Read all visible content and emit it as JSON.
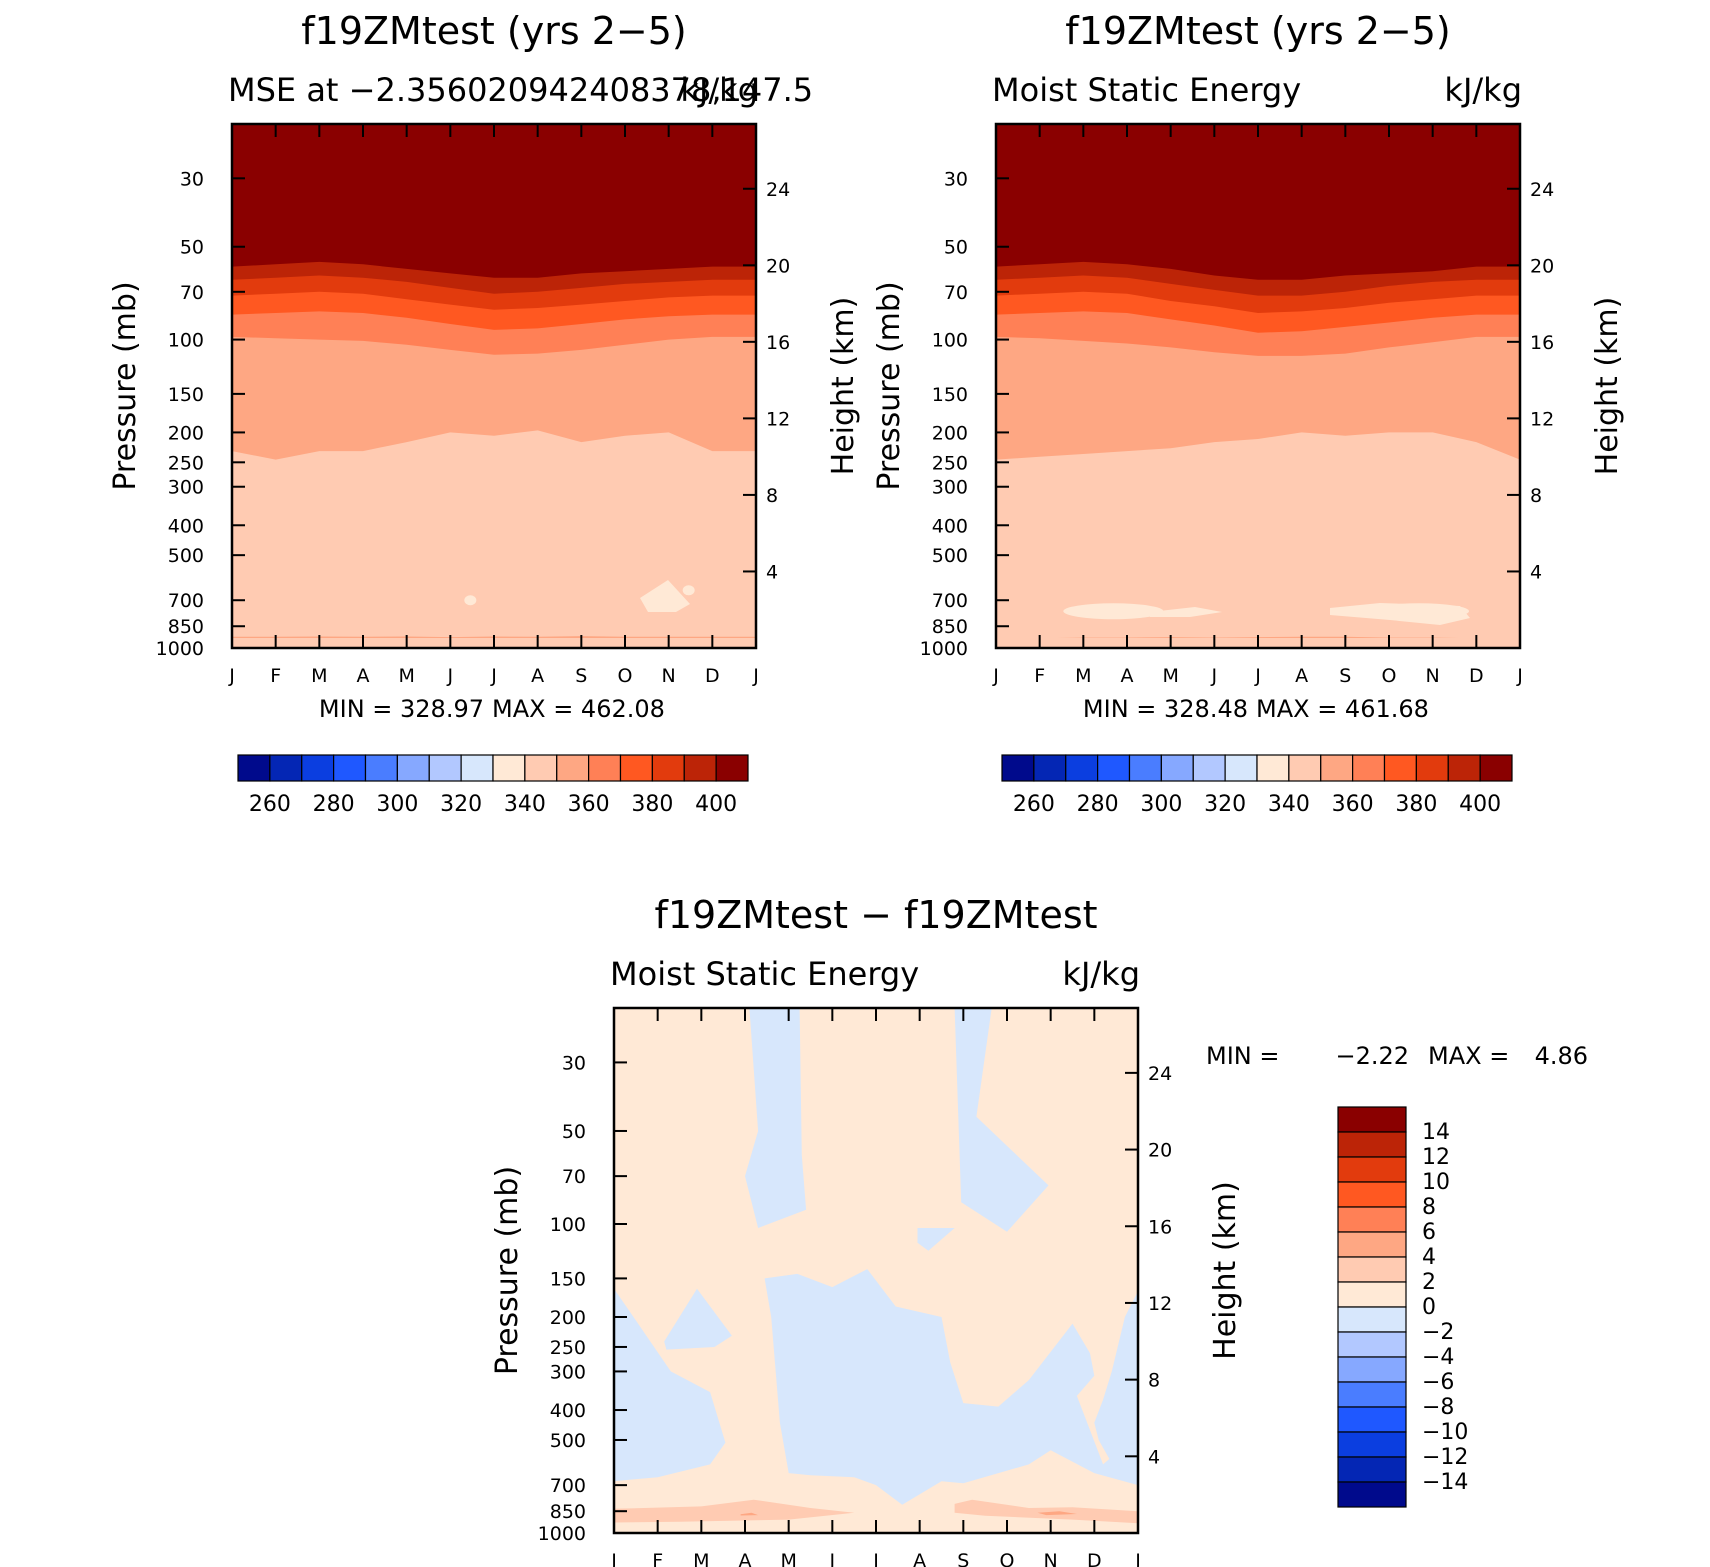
{
  "palette": {
    "mse": [
      "#000a8c",
      "#0426b4",
      "#0b3ee0",
      "#1f58ff",
      "#4a7dff",
      "#86a8ff",
      "#b2c8ff",
      "#d7e7fc",
      "#ffe9d6",
      "#ffcbb2",
      "#fea783",
      "#ff8056",
      "#ff5821",
      "#e23b0d",
      "#bc2407",
      "#8a0000"
    ],
    "diff": [
      "#000a8c",
      "#0426b4",
      "#0b3ee0",
      "#1f58ff",
      "#4a7dff",
      "#86a8ff",
      "#b2c8ff",
      "#d7e7fc",
      "#ffe9d6",
      "#ffcbb2",
      "#fea783",
      "#ff8056",
      "#ff5821",
      "#e23b0d",
      "#bc2407",
      "#8a0000"
    ]
  },
  "chart_data": [
    {
      "type": "heatmap",
      "title": "f19ZMtest (yrs 2−5)",
      "subtitle_left": "MSE at −2.356020942408378,147.5",
      "subtitle_right": "kJ/kg",
      "ylabel": "Pressure (mb)",
      "ylabel_right": "Height (km)",
      "x_tick_labels": [
        "J",
        "F",
        "M",
        "A",
        "M",
        "J",
        "J",
        "A",
        "S",
        "O",
        "N",
        "D",
        "J"
      ],
      "y_tick_labels": [
        "30",
        "50",
        "70",
        "100",
        "150",
        "200",
        "250",
        "300",
        "400",
        "500",
        "700",
        "850",
        "1000"
      ],
      "y_ticks": [
        30,
        50,
        70,
        100,
        150,
        200,
        250,
        300,
        400,
        500,
        700,
        850,
        1000
      ],
      "y_right_ticks": [
        "4",
        "8",
        "12",
        "16",
        "20",
        "24"
      ],
      "ylim": [
        1000,
        20
      ],
      "y_scale": "log",
      "min_text": "MIN = 328.97",
      "max_text": "MAX = 462.08",
      "colorbar_labels": [
        "260",
        "280",
        "300",
        "320",
        "340",
        "360",
        "380",
        "400"
      ],
      "contour_levels": [
        250,
        260,
        270,
        280,
        290,
        300,
        310,
        320,
        330,
        340,
        350,
        360,
        370,
        380,
        390,
        400
      ],
      "months": [
        "J",
        "F",
        "M",
        "A",
        "M",
        "J",
        "J",
        "A",
        "S",
        "O",
        "N",
        "D",
        "J"
      ],
      "level_boundaries": [
        {
          "level": 400,
          "pressure_mb": [
            52,
            51,
            50,
            51,
            53,
            55,
            57,
            56,
            55,
            54,
            53,
            52,
            52
          ]
        },
        {
          "level": 390,
          "pressure_mb": [
            58,
            57,
            56,
            57,
            59,
            61,
            63,
            63,
            61,
            60,
            59,
            58,
            58
          ]
        },
        {
          "level": 380,
          "pressure_mb": [
            64,
            63,
            62,
            63,
            65,
            68,
            71,
            70,
            68,
            66,
            65,
            64,
            64
          ]
        },
        {
          "level": 370,
          "pressure_mb": [
            72,
            71,
            70,
            71,
            74,
            77,
            80,
            79,
            77,
            75,
            73,
            72,
            72
          ]
        },
        {
          "level": 360,
          "pressure_mb": [
            83,
            82,
            81,
            82,
            85,
            89,
            93,
            92,
            89,
            86,
            84,
            83,
            83
          ]
        },
        {
          "level": 350,
          "pressure_mb": [
            98,
            99,
            100,
            101,
            104,
            108,
            112,
            111,
            108,
            104,
            100,
            98,
            98
          ]
        },
        {
          "level": 340,
          "pressure_mb": [
            230,
            245,
            230,
            230,
            215,
            200,
            205,
            197,
            215,
            205,
            200,
            230,
            230
          ]
        },
        {
          "level": 330,
          "pressure_mb": [
            920,
            920,
            918,
            920,
            918,
            922,
            918,
            920,
            915,
            920,
            920,
            920,
            920
          ]
        }
      ],
      "below_330_patches": [
        {
          "month": "J",
          "pressure_mb": 700
        },
        {
          "month": "N",
          "pressure_mb": 650
        }
      ]
    },
    {
      "type": "heatmap",
      "title": "f19ZMtest (yrs 2−5)",
      "subtitle_left": "Moist Static Energy",
      "subtitle_right": "kJ/kg",
      "ylabel": "Pressure (mb)",
      "ylabel_right": "Height (km)",
      "x_tick_labels": [
        "J",
        "F",
        "M",
        "A",
        "M",
        "J",
        "J",
        "A",
        "S",
        "O",
        "N",
        "D",
        "J"
      ],
      "y_tick_labels": [
        "30",
        "50",
        "70",
        "100",
        "150",
        "200",
        "250",
        "300",
        "400",
        "500",
        "700",
        "850",
        "1000"
      ],
      "y_ticks": [
        30,
        50,
        70,
        100,
        150,
        200,
        250,
        300,
        400,
        500,
        700,
        850,
        1000
      ],
      "y_right_ticks": [
        "4",
        "8",
        "12",
        "16",
        "20",
        "24"
      ],
      "ylim": [
        1000,
        20
      ],
      "y_scale": "log",
      "min_text": "MIN = 328.48",
      "max_text": "MAX = 461.68",
      "colorbar_labels": [
        "260",
        "280",
        "300",
        "320",
        "340",
        "360",
        "380",
        "400"
      ],
      "contour_levels": [
        250,
        260,
        270,
        280,
        290,
        300,
        310,
        320,
        330,
        340,
        350,
        360,
        370,
        380,
        390,
        400
      ],
      "months": [
        "J",
        "F",
        "M",
        "A",
        "M",
        "J",
        "J",
        "A",
        "S",
        "O",
        "N",
        "D",
        "J"
      ],
      "level_boundaries": [
        {
          "level": 400,
          "pressure_mb": [
            52,
            51,
            50,
            51,
            53,
            55,
            57,
            57,
            56,
            55,
            54,
            52,
            52
          ]
        },
        {
          "level": 390,
          "pressure_mb": [
            58,
            57,
            56,
            57,
            59,
            62,
            64,
            64,
            62,
            61,
            60,
            58,
            58
          ]
        },
        {
          "level": 380,
          "pressure_mb": [
            64,
            63,
            62,
            63,
            66,
            69,
            72,
            72,
            70,
            67,
            65,
            64,
            64
          ]
        },
        {
          "level": 370,
          "pressure_mb": [
            72,
            71,
            70,
            71,
            75,
            78,
            82,
            81,
            79,
            76,
            74,
            72,
            72
          ]
        },
        {
          "level": 360,
          "pressure_mb": [
            83,
            82,
            81,
            82,
            86,
            90,
            95,
            94,
            91,
            88,
            85,
            83,
            83
          ]
        },
        {
          "level": 350,
          "pressure_mb": [
            98,
            99,
            101,
            103,
            106,
            110,
            113,
            113,
            111,
            106,
            102,
            98,
            98
          ]
        },
        {
          "level": 340,
          "pressure_mb": [
            245,
            240,
            235,
            230,
            225,
            215,
            210,
            200,
            205,
            200,
            200,
            215,
            245
          ]
        },
        {
          "level": 330,
          "pressure_mb": [
            930,
            930,
            925,
            925,
            922,
            925,
            922,
            920,
            920,
            925,
            925,
            930,
            930
          ]
        }
      ],
      "below_330_patches": [
        {
          "month": "M",
          "pressure_mb": 760
        },
        {
          "month": "O",
          "pressure_mb": 760
        }
      ]
    },
    {
      "type": "heatmap",
      "title": "f19ZMtest − f19ZMtest",
      "subtitle_left": "Moist Static Energy",
      "subtitle_right": "kJ/kg",
      "ylabel": "Pressure (mb)",
      "ylabel_right": "Height (km)",
      "x_tick_labels": [
        "J",
        "F",
        "M",
        "A",
        "M",
        "J",
        "J",
        "A",
        "S",
        "O",
        "N",
        "D",
        "J"
      ],
      "y_tick_labels": [
        "30",
        "50",
        "70",
        "100",
        "150",
        "200",
        "250",
        "300",
        "400",
        "500",
        "700",
        "850",
        "1000"
      ],
      "y_ticks": [
        30,
        50,
        70,
        100,
        150,
        200,
        250,
        300,
        400,
        500,
        700,
        850,
        1000
      ],
      "y_right_ticks": [
        "4",
        "8",
        "12",
        "16",
        "20",
        "24"
      ],
      "ylim": [
        1000,
        20
      ],
      "y_scale": "log",
      "min_label": "MIN =",
      "min_value": "−2.22",
      "max_label": "MAX =",
      "max_value": "4.86",
      "colorbar_labels": [
        "14",
        "12",
        "10",
        "8",
        "6",
        "4",
        "2",
        "0",
        "−2",
        "−4",
        "−6",
        "−8",
        "−10",
        "−12",
        "−14"
      ],
      "contour_levels": [
        -14,
        -12,
        -10,
        -8,
        -6,
        -4,
        -2,
        0,
        2,
        4,
        6,
        8,
        10,
        12,
        14
      ],
      "background_range": [
        0,
        2
      ],
      "negative_regions": [
        {
          "name": "upper-A",
          "range": [
            -2,
            0
          ],
          "months": [
            "A",
            "M"
          ],
          "pressure_mb": [
            20,
            100
          ]
        },
        {
          "name": "upper-S",
          "range": [
            -2,
            0
          ],
          "months": [
            "S",
            "O"
          ],
          "pressure_mb": [
            20,
            110
          ]
        },
        {
          "name": "mid-J",
          "range": [
            -2,
            0
          ],
          "months": [
            "J",
            "M"
          ],
          "pressure_mb": [
            160,
            680
          ]
        },
        {
          "name": "mid-M-A",
          "range": [
            -2,
            0
          ],
          "months": [
            "M",
            "S"
          ],
          "pressure_mb": [
            140,
            880
          ]
        },
        {
          "name": "mid-D",
          "range": [
            -2,
            0
          ],
          "months": [
            "O",
            "J"
          ],
          "pressure_mb": [
            170,
            710
          ]
        }
      ],
      "positive_regions": [
        {
          "name": "low-level",
          "range": [
            2,
            4
          ],
          "months": [
            "J",
            "J"
          ],
          "pressure_mb": [
            830,
            980
          ]
        }
      ]
    }
  ]
}
